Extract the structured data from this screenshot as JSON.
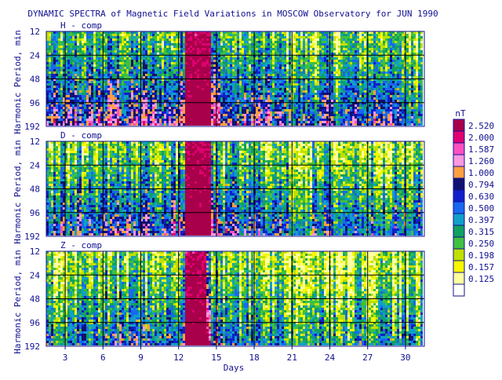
{
  "chart_data": {
    "type": "heatmap",
    "title": "DYNAMIC SPECTRA of Magnetic Field Variations in MOSCOW Observatory for JUN 1990",
    "xlabel": "Days",
    "ylabel": "Harmonic Period, min",
    "x_ticks": [
      "3",
      "6",
      "9",
      "12",
      "15",
      "18",
      "21",
      "24",
      "27",
      "30"
    ],
    "x_tick_values": [
      3,
      6,
      9,
      12,
      15,
      18,
      21,
      24,
      27,
      30
    ],
    "xlim": [
      1.5,
      31.5
    ],
    "y_ticks": [
      "12",
      "24",
      "48",
      "96",
      "192"
    ],
    "y_scale": "log",
    "ylim": [
      12,
      192
    ],
    "panels": [
      {
        "name": "H - comp",
        "storm_days": [
          12.6,
          14.5
        ],
        "activity_by_day": [
          0.5,
          0.55,
          0.5,
          0.6,
          0.55,
          0.6,
          0.65,
          0.55,
          0.6,
          0.6,
          0.55,
          0.6,
          1.0,
          0.95,
          0.7,
          0.55,
          0.5,
          0.6,
          0.55,
          0.5,
          0.45,
          0.45,
          0.45,
          0.5,
          0.45,
          0.5,
          0.5,
          0.6,
          0.5,
          0.45,
          0.45
        ]
      },
      {
        "name": "D - comp",
        "storm_days": [
          12.6,
          14.5
        ],
        "activity_by_day": [
          0.45,
          0.5,
          0.45,
          0.5,
          0.45,
          0.5,
          0.55,
          0.5,
          0.55,
          0.55,
          0.5,
          0.55,
          0.95,
          0.9,
          0.6,
          0.5,
          0.45,
          0.5,
          0.5,
          0.45,
          0.4,
          0.4,
          0.4,
          0.45,
          0.4,
          0.45,
          0.45,
          0.45,
          0.45,
          0.4,
          0.4
        ]
      },
      {
        "name": "Z - comp",
        "storm_days": [
          12.6,
          14.2
        ],
        "activity_by_day": [
          0.35,
          0.4,
          0.35,
          0.4,
          0.35,
          0.4,
          0.45,
          0.4,
          0.45,
          0.45,
          0.4,
          0.45,
          0.9,
          0.8,
          0.5,
          0.4,
          0.35,
          0.4,
          0.4,
          0.35,
          0.3,
          0.3,
          0.3,
          0.35,
          0.3,
          0.35,
          0.35,
          0.35,
          0.35,
          0.3,
          0.3
        ]
      }
    ],
    "colorbar": {
      "unit": "nT",
      "levels": [
        {
          "label": "2.520",
          "color": "#a8004a"
        },
        {
          "label": "2.000",
          "color": "#e00070"
        },
        {
          "label": "1.587",
          "color": "#ff50c0"
        },
        {
          "label": "1.260",
          "color": "#ff98e0"
        },
        {
          "label": "1.000",
          "color": "#ffa040"
        },
        {
          "label": "0.794",
          "color": "#101070"
        },
        {
          "label": "0.630",
          "color": "#1020c8"
        },
        {
          "label": "0.500",
          "color": "#1868f0"
        },
        {
          "label": "0.397",
          "color": "#10a0c8"
        },
        {
          "label": "0.315",
          "color": "#10a060"
        },
        {
          "label": "0.250",
          "color": "#40c040"
        },
        {
          "label": "0.198",
          "color": "#c0e000"
        },
        {
          "label": "0.157",
          "color": "#f8f800"
        },
        {
          "label": "0.125",
          "color": "#ffffa0"
        }
      ]
    }
  }
}
